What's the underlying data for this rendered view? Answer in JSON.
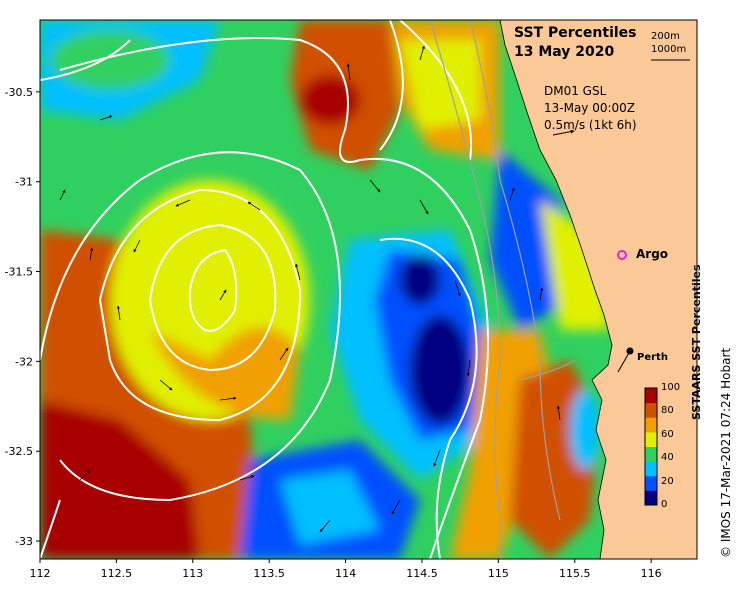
{
  "title": {
    "line1": "SST Percentiles",
    "line2": "13 May 2020"
  },
  "scale_legend": {
    "contour1": "200m",
    "contour2": "1000m"
  },
  "current_legend": {
    "line1": "DM01 GSL",
    "line2": "13-May 00:00Z",
    "line3": "0.5m/s (1kt 6h)"
  },
  "markers": {
    "argo": "Argo",
    "perth": "Perth"
  },
  "colorbar": {
    "title": "SSTAARS SST Percentiles",
    "ticks": [
      "100",
      "80",
      "60",
      "40",
      "20",
      "0"
    ],
    "colors": [
      "#000080",
      "#0050ff",
      "#00bfff",
      "#30d060",
      "#e0f000",
      "#f0a000",
      "#d05000",
      "#a80000"
    ]
  },
  "credit": "© IMOS 17-Mar-2021 07:24 Hobart",
  "axes": {
    "x_ticks": [
      "112",
      "112.5",
      "113",
      "113.5",
      "114",
      "114.5",
      "115",
      "115.5",
      "116"
    ],
    "y_ticks": [
      "-30.5",
      "-31",
      "-31.5",
      "-32",
      "-32.5",
      "-33"
    ],
    "x_range": [
      112,
      116.3
    ],
    "y_range": [
      -33.1,
      -30.1
    ]
  },
  "colors": {
    "land": "#fbc897",
    "contour": "#ffffff",
    "argo_marker": "#e020e0"
  }
}
